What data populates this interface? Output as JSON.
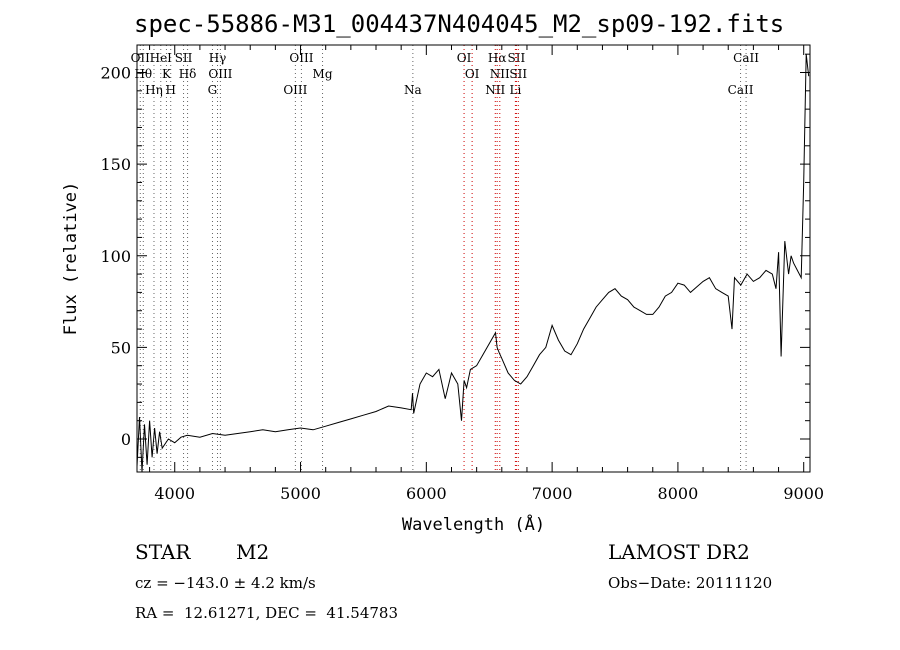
{
  "title": "spec-55886-M31_004437N404045_M2_sp09-192.fits",
  "info": {
    "class_label": "STAR",
    "subclass_label": "M2",
    "survey": "LAMOST DR2",
    "cz": "cz = −143.0 ± 4.2 km/s",
    "obs_date": "Obs−Date: 20111120",
    "radec": "RA =  12.61271, DEC =  41.54783"
  },
  "chart_data": {
    "type": "line",
    "xlabel": "Wavelength (Å)",
    "ylabel": "Flux (relative)",
    "xlim": [
      3700,
      9050
    ],
    "ylim": [
      -18,
      215
    ],
    "xticks": [
      4000,
      5000,
      6000,
      7000,
      8000,
      9000
    ],
    "yticks": [
      0,
      50,
      100,
      150,
      200
    ],
    "grid": false,
    "series": [
      {
        "x": [
          3700,
          3720,
          3740,
          3760,
          3780,
          3800,
          3820,
          3840,
          3860,
          3880,
          3900,
          3950,
          4000,
          4050,
          4100,
          4200,
          4300,
          4400,
          4500,
          4600,
          4700,
          4800,
          4900,
          5000,
          5100,
          5200,
          5300,
          5400,
          5500,
          5600,
          5700,
          5800,
          5880,
          5890,
          5900,
          5950,
          6000,
          6050,
          6100,
          6150,
          6200,
          6250,
          6280,
          6300,
          6320,
          6350,
          6400,
          6450,
          6500,
          6550,
          6563,
          6580,
          6600,
          6650,
          6700,
          6750,
          6800,
          6850,
          6900,
          6950,
          7000,
          7050,
          7100,
          7150,
          7200,
          7250,
          7300,
          7350,
          7400,
          7450,
          7500,
          7550,
          7600,
          7650,
          7700,
          7750,
          7800,
          7850,
          7900,
          7950,
          8000,
          8050,
          8100,
          8150,
          8200,
          8250,
          8300,
          8350,
          8400,
          8430,
          8450,
          8500,
          8550,
          8600,
          8650,
          8700,
          8750,
          8780,
          8800,
          8820,
          8850,
          8880,
          8900,
          8920,
          8950,
          8980,
          9000,
          9020,
          9040
        ],
        "y": [
          -15,
          12,
          -18,
          8,
          -14,
          10,
          -10,
          6,
          -8,
          4,
          -5,
          0,
          -2,
          1,
          2,
          1,
          3,
          2,
          3,
          4,
          5,
          4,
          5,
          6,
          5,
          7,
          9,
          11,
          13,
          15,
          18,
          17,
          16,
          25,
          14,
          30,
          36,
          34,
          38,
          22,
          36,
          30,
          10,
          32,
          28,
          38,
          40,
          46,
          52,
          58,
          50,
          47,
          44,
          36,
          32,
          30,
          34,
          40,
          46,
          50,
          62,
          54,
          48,
          46,
          52,
          60,
          66,
          72,
          76,
          80,
          82,
          78,
          76,
          72,
          70,
          68,
          68,
          72,
          78,
          80,
          85,
          84,
          80,
          83,
          86,
          88,
          82,
          80,
          78,
          60,
          88,
          84,
          90,
          86,
          88,
          92,
          90,
          82,
          102,
          45,
          108,
          90,
          100,
          96,
          92,
          88,
          140,
          210,
          198
        ],
        "color": "#000000"
      }
    ],
    "line_markers": [
      {
        "wavelength": 3726,
        "label": "OII"
      },
      {
        "wavelength": 3750,
        "label": "Hθ"
      },
      {
        "wavelength": 3835,
        "label": "Hη"
      },
      {
        "wavelength": 3889,
        "label": "HeI"
      },
      {
        "wavelength": 3934,
        "label": "K"
      },
      {
        "wavelength": 3968,
        "label": "H"
      },
      {
        "wavelength": 4070,
        "label": "SII"
      },
      {
        "wavelength": 4102,
        "label": "Hδ"
      },
      {
        "wavelength": 4300,
        "label": "G"
      },
      {
        "wavelength": 4340,
        "label": "Hγ"
      },
      {
        "wavelength": 4363,
        "label": "OIII"
      },
      {
        "wavelength": 4959,
        "label": "OIII"
      },
      {
        "wavelength": 5007,
        "label": "OIII"
      },
      {
        "wavelength": 5175,
        "label": "Mg"
      },
      {
        "wavelength": 5893,
        "label": "Na"
      },
      {
        "wavelength": 6300,
        "label": "OI"
      },
      {
        "wavelength": 6364,
        "label": "OI"
      },
      {
        "wavelength": 6548,
        "label": "NII"
      },
      {
        "wavelength": 6563,
        "label": "Hα"
      },
      {
        "wavelength": 6584,
        "label": "NII"
      },
      {
        "wavelength": 6708,
        "label": "Li"
      },
      {
        "wavelength": 6716,
        "label": "SII"
      },
      {
        "wavelength": 6731,
        "label": "SII"
      },
      {
        "wavelength": 8498,
        "label": "CaII"
      },
      {
        "wavelength": 8542,
        "label": "CaII"
      }
    ],
    "colors": {
      "line": "#000000",
      "emission_marker": "#cc0000",
      "absorption_marker": "#666666"
    }
  }
}
